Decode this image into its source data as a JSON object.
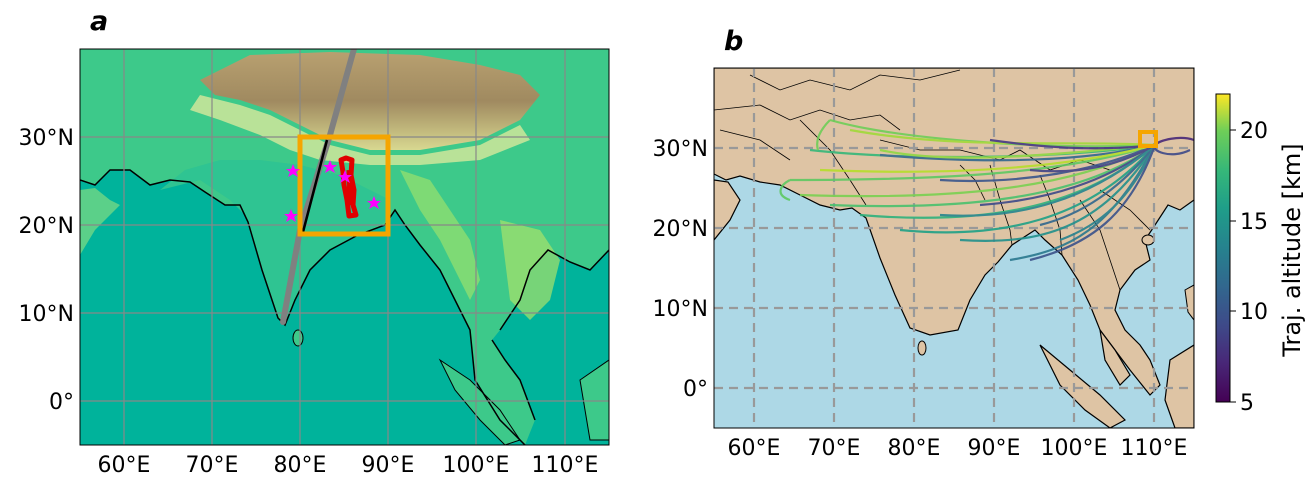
{
  "panels": {
    "a": {
      "letter": "a",
      "lat_ticks": [
        "30°N",
        "20°N",
        "10°N",
        "0°"
      ],
      "lon_ticks": [
        "60°E",
        "70°E",
        "80°E",
        "90°E",
        "100°E",
        "110°E"
      ]
    },
    "b": {
      "letter": "b",
      "lat_ticks": [
        "30°N",
        "20°N",
        "10°N",
        "0°"
      ],
      "lon_ticks": [
        "60°E",
        "70°E",
        "80°E",
        "90°E",
        "100°E",
        "110°E"
      ]
    }
  },
  "colorbar": {
    "label": "Traj. altitude [km]",
    "ticks": [
      "20",
      "15",
      "10",
      "5"
    ],
    "colormap": "viridis",
    "range": [
      5,
      22
    ]
  },
  "colors": {
    "box": "#f5a500",
    "flight_track": "#e00000",
    "satellite_track": "#808080",
    "stars": "#ff00ff",
    "ocean_a": "#00b39b",
    "ocean_b": "#add8e6",
    "land_b": "#dec4a4",
    "grid": "#999999"
  },
  "chart_data": {
    "type": "map",
    "extent": {
      "lon": [
        55,
        115
      ],
      "lat": [
        -5,
        40
      ]
    },
    "grid": true,
    "box_region": {
      "lon": [
        80,
        90
      ],
      "lat": [
        19,
        30
      ]
    },
    "b_box_region": {
      "lon": [
        109,
        111
      ],
      "lat": [
        30,
        32
      ]
    }
  }
}
